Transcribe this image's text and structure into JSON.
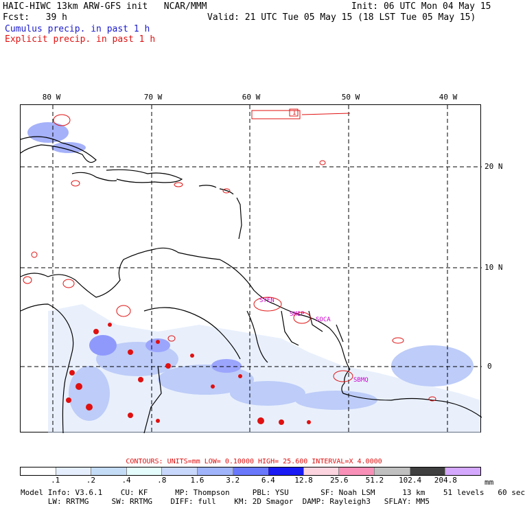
{
  "header": {
    "model_line": "HAIC-HIWC 13km ARW-GFS init   NCAR/MMM",
    "init": "Init: 06 UTC Mon 04 May 15",
    "fcst": "Fcst:   39 h",
    "valid": "Valid: 21 UTC Tue 05 May 15 (18 LST Tue 05 May 15)",
    "cumulus": "Cumulus precip. in past 1 h",
    "explicit": "Explicit precip. in past 1 h"
  },
  "map": {
    "lon_labels": [
      "80 W",
      "70 W",
      "60 W",
      "50 W",
      "40 W"
    ],
    "lat_labels": [
      "20 N",
      "10 N",
      "0"
    ],
    "station_labels": [
      "SYEN",
      "SMIP",
      "SOCA",
      "SBMQ"
    ],
    "box_label": "1"
  },
  "contours_line": "CONTOURS:  UNITS=mm  LOW= 0.10000      HIGH=  25.600      INTERVAL=X  4.0000",
  "colorbar": {
    "values": [
      ".1",
      ".2",
      ".4",
      ".8",
      "1.6",
      "3.2",
      "6.4",
      "12.8",
      "25.6",
      "51.2",
      "102.4",
      "204.8"
    ],
    "units": "mm",
    "colors": [
      "#ffffff",
      "#e4eefc",
      "#c4dcf6",
      "#e4fcfc",
      "#c8d8fc",
      "#a0b4fc",
      "#6a78fc",
      "#1a1af4",
      "#fcd4e0",
      "#f890b8",
      "#c0c0c0",
      "#404040",
      "#d4a8fc"
    ]
  },
  "footer": {
    "line1": "Model Info: V3.6.1    CU: KF      MP: Thompson     PBL: YSU       SF: Noah LSM      13 km    51 levels   60 sec",
    "line2": "      LW: RRTMG     SW: RRTMG    DIFF: full    KM: 2D Smagor  DAMP: Rayleigh3   SFLAY: MM5"
  }
}
